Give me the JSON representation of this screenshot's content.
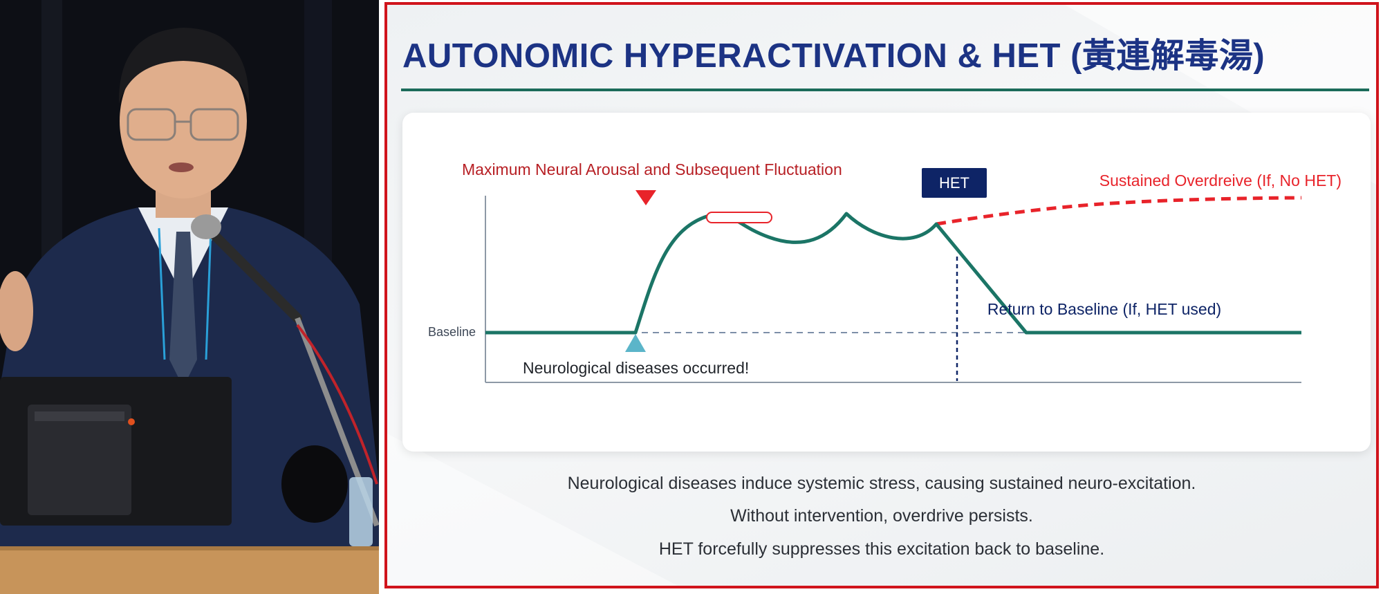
{
  "slide": {
    "title": "AUTONOMIC HYPERACTIVATION & HET (黃連解毒湯)",
    "captions": [
      "Neurological diseases induce systemic stress, causing sustained neuro-excitation.",
      "Without intervention, overdrive persists.",
      "HET forcefully suppresses this excitation back to baseline."
    ]
  },
  "diagram": {
    "peak_label": "Maximum Neural Arousal and Subsequent Fluctuation",
    "het_box_label": "HET",
    "overdrive_label": "Sustained Overdreive (If, No HET)",
    "return_label": "Return to Baseline (If, HET used)",
    "baseline_label": "Baseline",
    "onset_label": "Neurological diseases occurred!",
    "colors": {
      "curve": "#1b7566",
      "overdrive": "#e8232a",
      "het_box": "#0e2466",
      "peak_label": "#b71f24",
      "return_label": "#0e2466",
      "onset_marker": "#5bb5c9"
    }
  }
}
